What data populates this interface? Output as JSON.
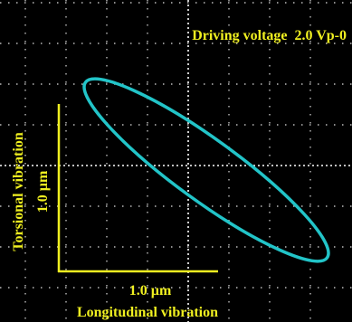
{
  "header": {
    "title": "Driving voltage  2.0 Vp-0"
  },
  "scale_bar": {
    "vertical_label": "1.0 µm",
    "horizontal_label": "1.0 µm"
  },
  "axes": {
    "y_label": "Torsional vibration",
    "x_label": "Longitudinal vibration"
  }
}
